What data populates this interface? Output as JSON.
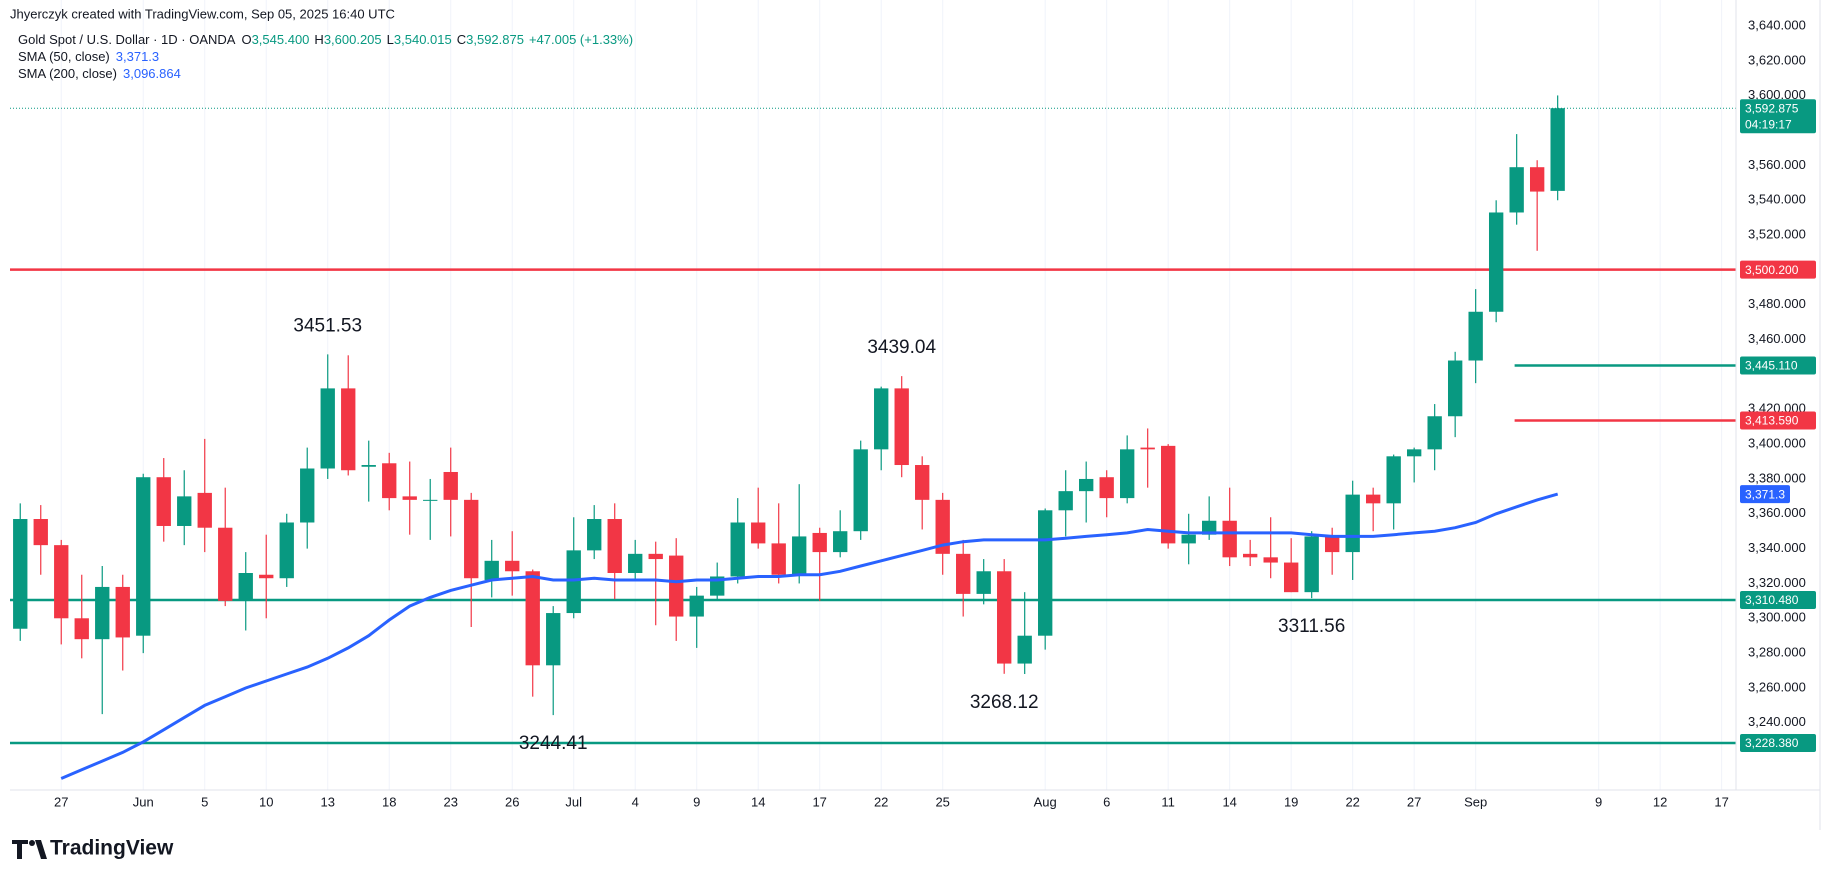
{
  "header": {
    "attribution": "Jhyerczyk created with TradingView.com, Sep 05, 2025 16:40 UTC"
  },
  "chart_data": {
    "type": "candlestick",
    "title": "Gold Spot / U.S. Dollar · 1D · OANDA",
    "ohlc": [
      {
        "key": "O",
        "value": "3,545.400"
      },
      {
        "key": "H",
        "value": "3,600.205"
      },
      {
        "key": "L",
        "value": "3,540.015"
      },
      {
        "key": "C",
        "value": "3,592.875"
      }
    ],
    "change": "+47.005 (+1.33%)",
    "up_color": "#089981",
    "down_color": "#f23645",
    "x": [
      0,
      1,
      2,
      3,
      4,
      5,
      6,
      7,
      8,
      9,
      10,
      11,
      12,
      13,
      14,
      15,
      16,
      17,
      18,
      19,
      20,
      21,
      22,
      23,
      24,
      25,
      26,
      27,
      28,
      29,
      30,
      31,
      32,
      33,
      34,
      35,
      36,
      37,
      38,
      39,
      40,
      41,
      42,
      43,
      44,
      45,
      46,
      47,
      48,
      49,
      50,
      51,
      52,
      53,
      54,
      55,
      56,
      57,
      58,
      59,
      60,
      61,
      62,
      63,
      64,
      65,
      66,
      67,
      68,
      69,
      70,
      71,
      72,
      73,
      74,
      75
    ],
    "open": [
      3294,
      3357,
      3342,
      3300,
      3288,
      3318,
      3290,
      3381,
      3353,
      3372,
      3352,
      3310,
      3325,
      3323,
      3355,
      3386,
      3432,
      3387,
      3389,
      3370,
      3368,
      3384,
      3368,
      3322,
      3333,
      3327,
      3273,
      3303,
      3339,
      3357,
      3326,
      3337,
      3336,
      3301,
      3313,
      3324,
      3355,
      3343,
      3325,
      3349,
      3338,
      3350,
      3397,
      3432,
      3388,
      3368,
      3337,
      3314,
      3327,
      3274,
      3290,
      3362,
      3373,
      3381,
      3369,
      3398,
      3399,
      3343,
      3348,
      3356,
      3337,
      3335,
      3332,
      3315,
      3347,
      3338,
      3371,
      3366,
      3393,
      3397,
      3416,
      3448,
      3476,
      3533,
      3559,
      3545.4
    ],
    "high": [
      3366,
      3365,
      3345,
      3325,
      3330,
      3325,
      3383,
      3392,
      3385,
      3403,
      3375,
      3338,
      3348,
      3360,
      3398,
      3451.53,
      3451,
      3402,
      3395,
      3390,
      3380,
      3398,
      3372,
      3345,
      3350,
      3328,
      3307,
      3358,
      3365,
      3366,
      3345,
      3344,
      3346,
      3318,
      3332,
      3369,
      3375,
      3366,
      3377,
      3352,
      3362,
      3402,
      3433,
      3439.04,
      3393,
      3372,
      3345,
      3334,
      3334,
      3315,
      3363,
      3385,
      3390,
      3385,
      3405,
      3409,
      3400,
      3360,
      3370,
      3375,
      3345,
      3358,
      3346,
      3350,
      3352,
      3379,
      3375,
      3394,
      3398,
      3423,
      3453,
      3489,
      3540,
      3578,
      3563,
      3600.205
    ],
    "low": [
      3287,
      3325,
      3285,
      3277,
      3245,
      3270,
      3280,
      3344,
      3342,
      3338,
      3307,
      3293,
      3300,
      3318,
      3340,
      3380,
      3382,
      3367,
      3362,
      3348,
      3345,
      3347,
      3295,
      3312,
      3313,
      3255,
      3244.41,
      3300,
      3334,
      3311,
      3322,
      3296,
      3287,
      3283,
      3310,
      3320,
      3340,
      3320,
      3320,
      3310,
      3335,
      3345,
      3385,
      3381,
      3351,
      3325,
      3301,
      3308,
      3268.12,
      3268,
      3282,
      3347,
      3355,
      3358,
      3366,
      3375,
      3340,
      3331,
      3345,
      3330,
      3330,
      3323,
      3315,
      3311.56,
      3325,
      3322,
      3350,
      3351,
      3378,
      3385,
      3404,
      3435,
      3470,
      3526,
      3511,
      3540.015
    ],
    "close": [
      3357,
      3342,
      3300,
      3288,
      3318,
      3289,
      3381,
      3353,
      3370,
      3352,
      3310,
      3326,
      3323,
      3355,
      3386,
      3432,
      3385,
      3388,
      3369,
      3368,
      3368,
      3368,
      3323,
      3333,
      3327,
      3273,
      3303,
      3339,
      3357,
      3326,
      3337,
      3334,
      3301,
      3313,
      3324,
      3355,
      3343,
      3325,
      3347,
      3338,
      3350,
      3397,
      3432,
      3388,
      3368,
      3337,
      3314,
      3327,
      3274,
      3290,
      3362,
      3373,
      3380,
      3369,
      3397,
      3397,
      3343,
      3348,
      3356,
      3335,
      3335,
      3332,
      3315,
      3347,
      3338,
      3371,
      3366,
      3393,
      3397,
      3416,
      3448,
      3476,
      3533,
      3559,
      3545,
      3592.875
    ],
    "series": [
      {
        "name": "SMA (50, close)",
        "color": "#2962ff",
        "value_label": "3,371.3",
        "values": [
          null,
          null,
          3208,
          3213,
          3218,
          3223,
          3229,
          3236,
          3243,
          3250,
          3255,
          3260,
          3264,
          3268,
          3272,
          3277,
          3283,
          3290,
          3299,
          3307,
          3312,
          3316,
          3319,
          3322,
          3323,
          3324,
          3322,
          3322,
          3323,
          3322,
          3322,
          3322,
          3321,
          3322,
          3322,
          3323,
          3324,
          3324,
          3325,
          3325,
          3327,
          3330,
          3333,
          3336,
          3339,
          3342,
          3344,
          3345,
          3345,
          3345,
          3345,
          3346,
          3347,
          3348,
          3349,
          3351,
          3350,
          3349,
          3349,
          3349,
          3349,
          3349,
          3349,
          3348,
          3347,
          3347,
          3347,
          3348,
          3349,
          3350,
          3352,
          3355,
          3360,
          3364,
          3368,
          3371.3
        ]
      },
      {
        "name": "SMA (200, close)",
        "color": "#2962ff",
        "value_label": "3,096.864"
      }
    ],
    "xlim": [
      -0.5,
      83.7
    ],
    "xticks": [
      {
        "value": 2,
        "label": "27"
      },
      {
        "value": 6,
        "label": "Jun"
      },
      {
        "value": 9,
        "label": "5"
      },
      {
        "value": 12,
        "label": "10"
      },
      {
        "value": 15,
        "label": "13"
      },
      {
        "value": 18,
        "label": "18"
      },
      {
        "value": 21,
        "label": "23"
      },
      {
        "value": 24,
        "label": "26"
      },
      {
        "value": 27,
        "label": "Jul"
      },
      {
        "value": 30,
        "label": "4"
      },
      {
        "value": 33,
        "label": "9"
      },
      {
        "value": 36,
        "label": "14"
      },
      {
        "value": 39,
        "label": "17"
      },
      {
        "value": 42,
        "label": "22"
      },
      {
        "value": 45,
        "label": "25"
      },
      {
        "value": 50,
        "label": "Aug"
      },
      {
        "value": 53,
        "label": "6"
      },
      {
        "value": 56,
        "label": "11"
      },
      {
        "value": 59,
        "label": "14"
      },
      {
        "value": 62,
        "label": "19"
      },
      {
        "value": 65,
        "label": "22"
      },
      {
        "value": 68,
        "label": "27"
      },
      {
        "value": 71,
        "label": "Sep"
      },
      {
        "value": 77,
        "label": "9"
      },
      {
        "value": 80,
        "label": "12"
      },
      {
        "value": 83,
        "label": "17"
      }
    ],
    "ylim": [
      3206,
      3655
    ],
    "yticks": [
      {
        "value": 3240,
        "label": "3,240.000"
      },
      {
        "value": 3260,
        "label": "3,260.000"
      },
      {
        "value": 3280,
        "label": "3,280.000"
      },
      {
        "value": 3300,
        "label": "3,300.000"
      },
      {
        "value": 3320,
        "label": "3,320.000"
      },
      {
        "value": 3340,
        "label": "3,340.000"
      },
      {
        "value": 3360,
        "label": "3,360.000"
      },
      {
        "value": 3380,
        "label": "3,380.000"
      },
      {
        "value": 3400,
        "label": "3,400.000"
      },
      {
        "value": 3420,
        "label": "3,420.000"
      },
      {
        "value": 3460,
        "label": "3,460.000"
      },
      {
        "value": 3480,
        "label": "3,480.000"
      },
      {
        "value": 3520,
        "label": "3,520.000"
      },
      {
        "value": 3540,
        "label": "3,540.000"
      },
      {
        "value": 3560,
        "label": "3,560.000"
      },
      {
        "value": 3600,
        "label": "3,600.000"
      },
      {
        "value": 3620,
        "label": "3,620.000"
      },
      {
        "value": 3640,
        "label": "3,640.000"
      }
    ],
    "grid": true,
    "hlines": [
      {
        "value": 3500.2,
        "label": "3,500.200",
        "color": "#f23645"
      },
      {
        "value": 3445.11,
        "label": "3,445.110",
        "color": "#089981",
        "start": 72.9
      },
      {
        "value": 3413.59,
        "label": "3,413.590",
        "color": "#f23645",
        "start": 72.9
      },
      {
        "value": 3310.48,
        "label": "3,310.480",
        "color": "#089981"
      },
      {
        "value": 3228.38,
        "label": "3,228.380",
        "color": "#089981"
      }
    ],
    "last_price": {
      "value": 3592.875,
      "label": "3,592.875",
      "countdown": "04:19:17",
      "color": "#089981"
    },
    "annotations": [
      {
        "text": "3451.53",
        "x": 15,
        "y": 3451.53,
        "position": "above"
      },
      {
        "text": "3439.04",
        "x": 43,
        "y": 3439.04,
        "position": "above"
      },
      {
        "text": "3244.41",
        "x": 26,
        "y": 3244.41,
        "position": "below"
      },
      {
        "text": "3268.12",
        "x": 48,
        "y": 3268.12,
        "position": "below"
      },
      {
        "text": "3311.56",
        "x": 63,
        "y": 3311.56,
        "position": "below"
      }
    ]
  },
  "footer": {
    "brand": "TradingView"
  }
}
